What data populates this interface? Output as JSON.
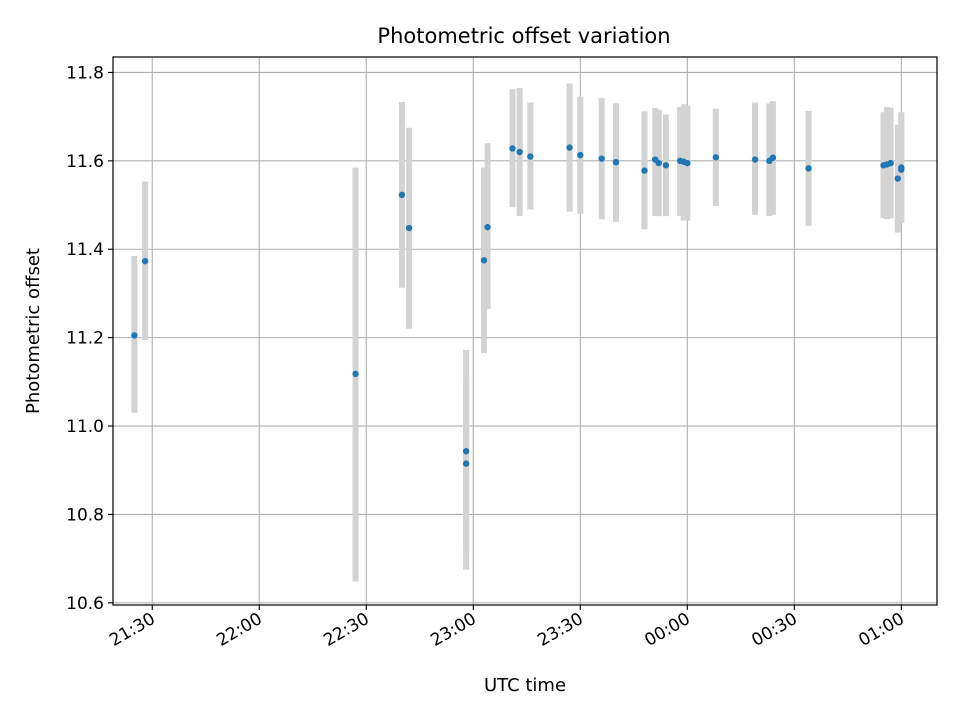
{
  "chart_data": {
    "type": "scatter",
    "title": "Photometric offset variation",
    "xlabel": "UTC time",
    "ylabel": "Photometric offset",
    "x_unit": "UTC time (HH:MM)",
    "xlim": [
      "21:19",
      "01:10"
    ],
    "ylim": [
      10.595,
      11.835
    ],
    "x_ticks": [
      "21:30",
      "22:00",
      "22:30",
      "23:00",
      "23:30",
      "00:00",
      "00:30",
      "01:00"
    ],
    "y_ticks": [
      "10.6",
      "10.8",
      "11.0",
      "11.2",
      "11.4",
      "11.6",
      "11.8"
    ],
    "grid": true,
    "marker_color": "#1f77b4",
    "errorbar_color": "#d3d3d3",
    "points": [
      {
        "t": "21:25",
        "y": 11.205,
        "lo": 11.03,
        "hi": 11.385
      },
      {
        "t": "21:28",
        "y": 11.373,
        "lo": 11.195,
        "hi": 11.553
      },
      {
        "t": "22:27",
        "y": 11.118,
        "lo": 10.648,
        "hi": 11.585
      },
      {
        "t": "22:40",
        "y": 11.523,
        "lo": 11.313,
        "hi": 11.733
      },
      {
        "t": "22:42",
        "y": 11.448,
        "lo": 11.22,
        "hi": 11.675
      },
      {
        "t": "22:58",
        "y": 10.915,
        "lo": 10.675,
        "hi": 11.172
      },
      {
        "t": "22:58",
        "y": 10.943,
        "lo": 10.72,
        "hi": 11.1
      },
      {
        "t": "23:03",
        "y": 11.375,
        "lo": 11.165,
        "hi": 11.585
      },
      {
        "t": "23:04",
        "y": 11.45,
        "lo": 11.265,
        "hi": 11.64
      },
      {
        "t": "23:11",
        "y": 11.628,
        "lo": 11.495,
        "hi": 11.762
      },
      {
        "t": "23:13",
        "y": 11.62,
        "lo": 11.475,
        "hi": 11.765
      },
      {
        "t": "23:16",
        "y": 11.61,
        "lo": 11.49,
        "hi": 11.732
      },
      {
        "t": "23:27",
        "y": 11.63,
        "lo": 11.485,
        "hi": 11.775
      },
      {
        "t": "23:30",
        "y": 11.613,
        "lo": 11.48,
        "hi": 11.745
      },
      {
        "t": "23:36",
        "y": 11.605,
        "lo": 11.468,
        "hi": 11.742
      },
      {
        "t": "23:40",
        "y": 11.597,
        "lo": 11.462,
        "hi": 11.73
      },
      {
        "t": "23:48",
        "y": 11.578,
        "lo": 11.445,
        "hi": 11.712
      },
      {
        "t": "23:51",
        "y": 11.603,
        "lo": 11.475,
        "hi": 11.72
      },
      {
        "t": "23:52",
        "y": 11.595,
        "lo": 11.475,
        "hi": 11.715
      },
      {
        "t": "23:54",
        "y": 11.59,
        "lo": 11.475,
        "hi": 11.705
      },
      {
        "t": "23:58",
        "y": 11.6,
        "lo": 11.475,
        "hi": 11.722
      },
      {
        "t": "23:59",
        "y": 11.598,
        "lo": 11.465,
        "hi": 11.728
      },
      {
        "t": "00:00",
        "y": 11.595,
        "lo": 11.465,
        "hi": 11.725
      },
      {
        "t": "00:08",
        "y": 11.608,
        "lo": 11.498,
        "hi": 11.718
      },
      {
        "t": "00:19",
        "y": 11.603,
        "lo": 11.478,
        "hi": 11.732
      },
      {
        "t": "00:23",
        "y": 11.6,
        "lo": 11.475,
        "hi": 11.73
      },
      {
        "t": "00:24",
        "y": 11.607,
        "lo": 11.478,
        "hi": 11.735
      },
      {
        "t": "00:34",
        "y": 11.583,
        "lo": 11.453,
        "hi": 11.713
      },
      {
        "t": "00:55",
        "y": 11.59,
        "lo": 11.47,
        "hi": 11.71
      },
      {
        "t": "00:56",
        "y": 11.592,
        "lo": 11.468,
        "hi": 11.722
      },
      {
        "t": "00:57",
        "y": 11.595,
        "lo": 11.47,
        "hi": 11.72
      },
      {
        "t": "00:59",
        "y": 11.56,
        "lo": 11.438,
        "hi": 11.682
      },
      {
        "t": "01:00",
        "y": 11.58,
        "lo": 11.46,
        "hi": 11.7
      },
      {
        "t": "01:00",
        "y": 11.585,
        "lo": 11.46,
        "hi": 11.71
      }
    ]
  }
}
